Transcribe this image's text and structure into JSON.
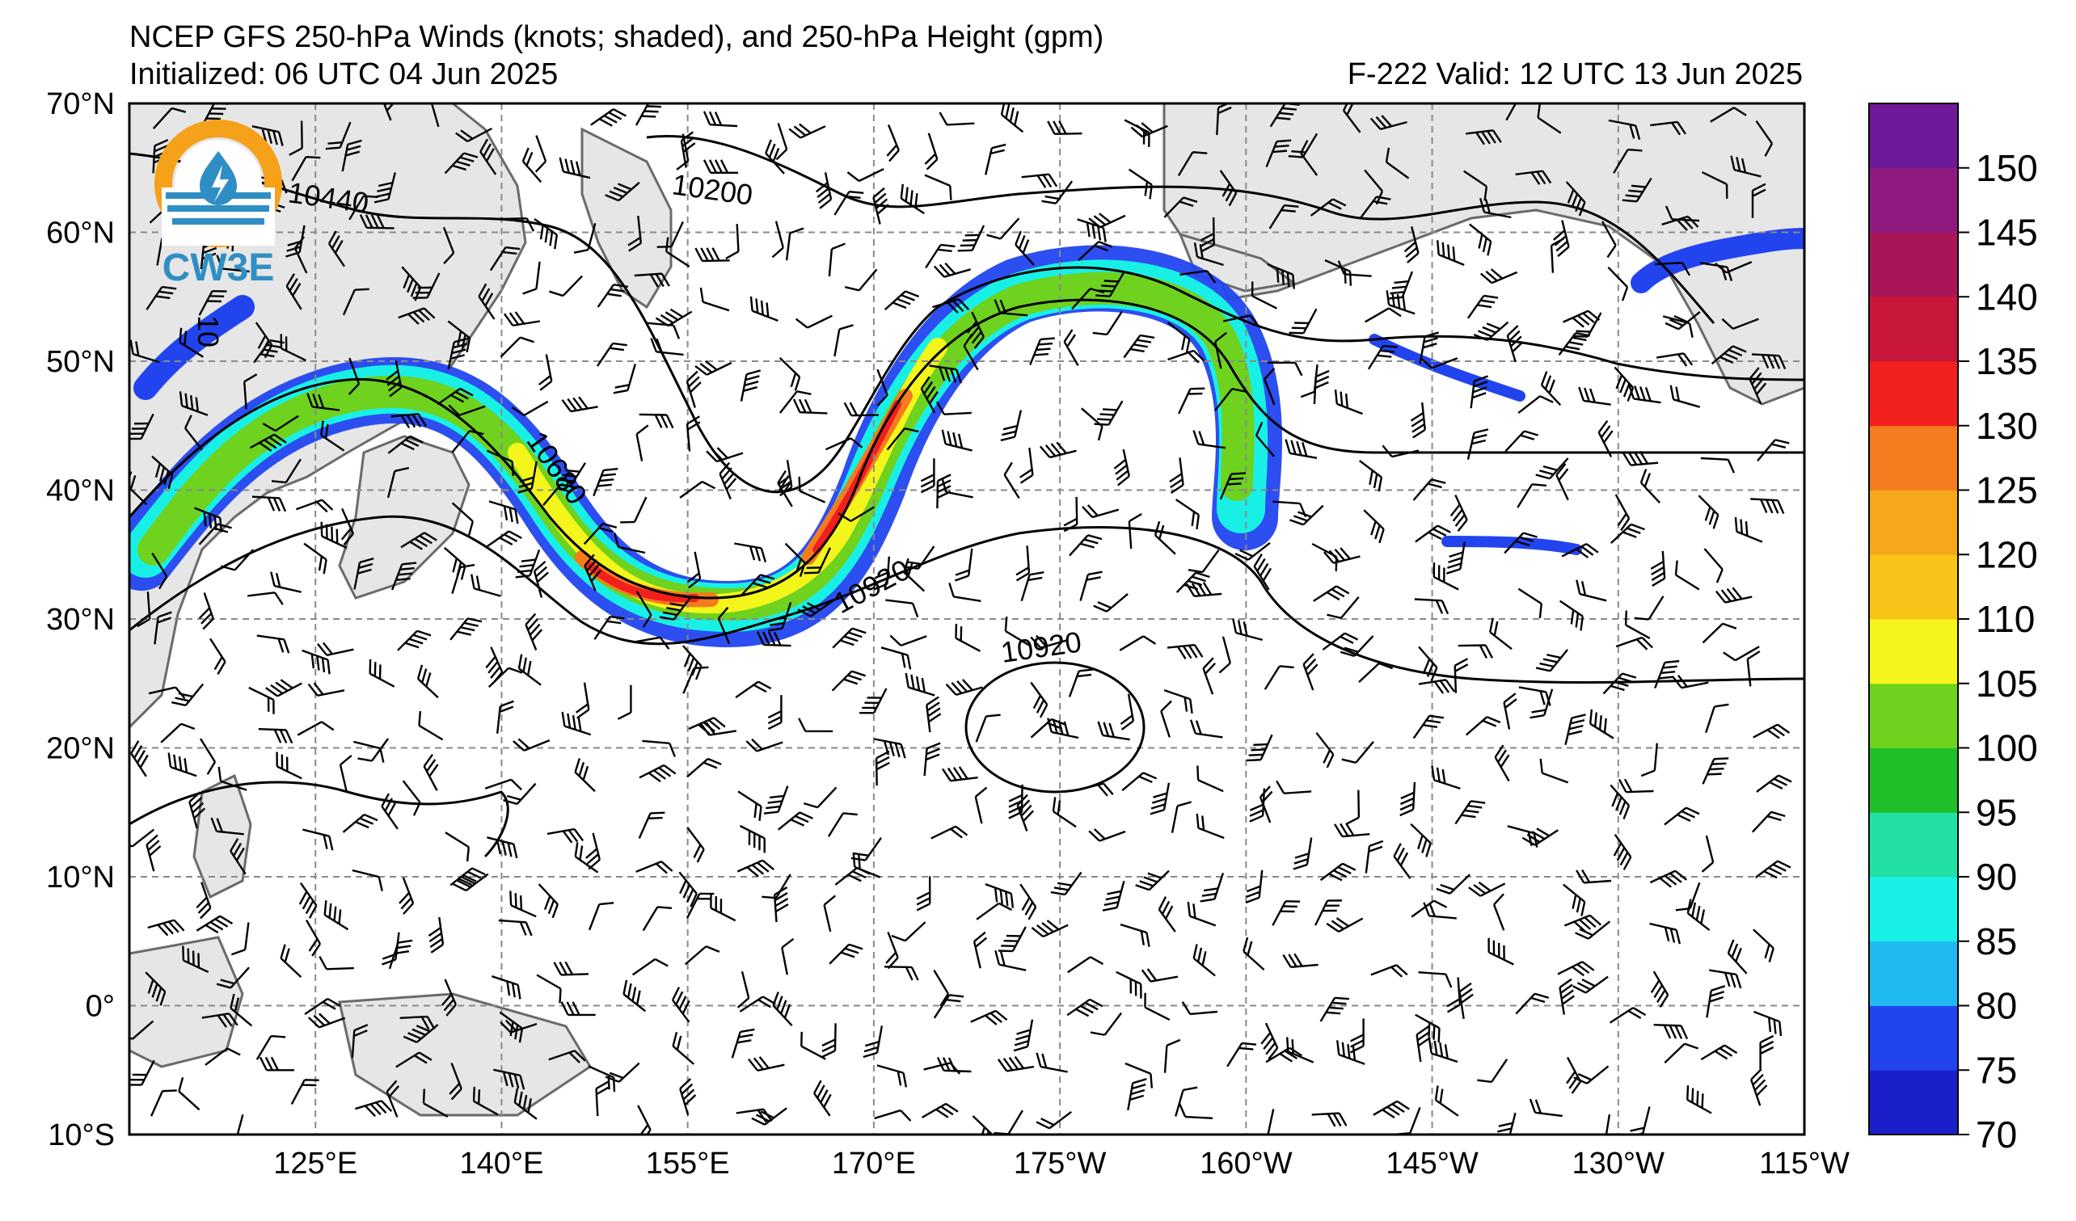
{
  "header": {
    "title": "NCEP GFS 250-hPa Winds (knots; shaded), and 250-hPa Height (gpm)",
    "initialized": "Initialized: 06 UTC 04 Jun 2025",
    "valid": "F-222  Valid: 12 UTC 13 Jun 2025"
  },
  "logo": {
    "text": "CW3E",
    "color": "#2f8fc4",
    "ring_color": "#f5a11a"
  },
  "map": {
    "lat_labels": [
      "70°N",
      "60°N",
      "50°N",
      "40°N",
      "30°N",
      "20°N",
      "10°N",
      "0°",
      "10°S"
    ],
    "lon_labels": [
      "125°E",
      "140°E",
      "155°E",
      "170°E",
      "175°W",
      "160°W",
      "145°W",
      "130°W",
      "115°W"
    ],
    "contour_labels": [
      "10440",
      "10200",
      "10680",
      "10920",
      "10920",
      "10"
    ],
    "land_color": "#e6e6e6",
    "coast_color": "#6a6a6a"
  },
  "colorbar": {
    "ticks": [
      "70",
      "75",
      "80",
      "85",
      "90",
      "95",
      "100",
      "105",
      "110",
      "120",
      "125",
      "130",
      "135",
      "140",
      "145",
      "150"
    ],
    "colors": [
      "#1b1fc9",
      "#2244ef",
      "#1fb8f0",
      "#18f0e6",
      "#22e0a5",
      "#1fbf2a",
      "#6ed21f",
      "#f4f51a",
      "#f8c418",
      "#f6a81c",
      "#f47b1e",
      "#f21f1f",
      "#c8173a",
      "#aa1558",
      "#8e1a80",
      "#6e1a98"
    ]
  }
}
